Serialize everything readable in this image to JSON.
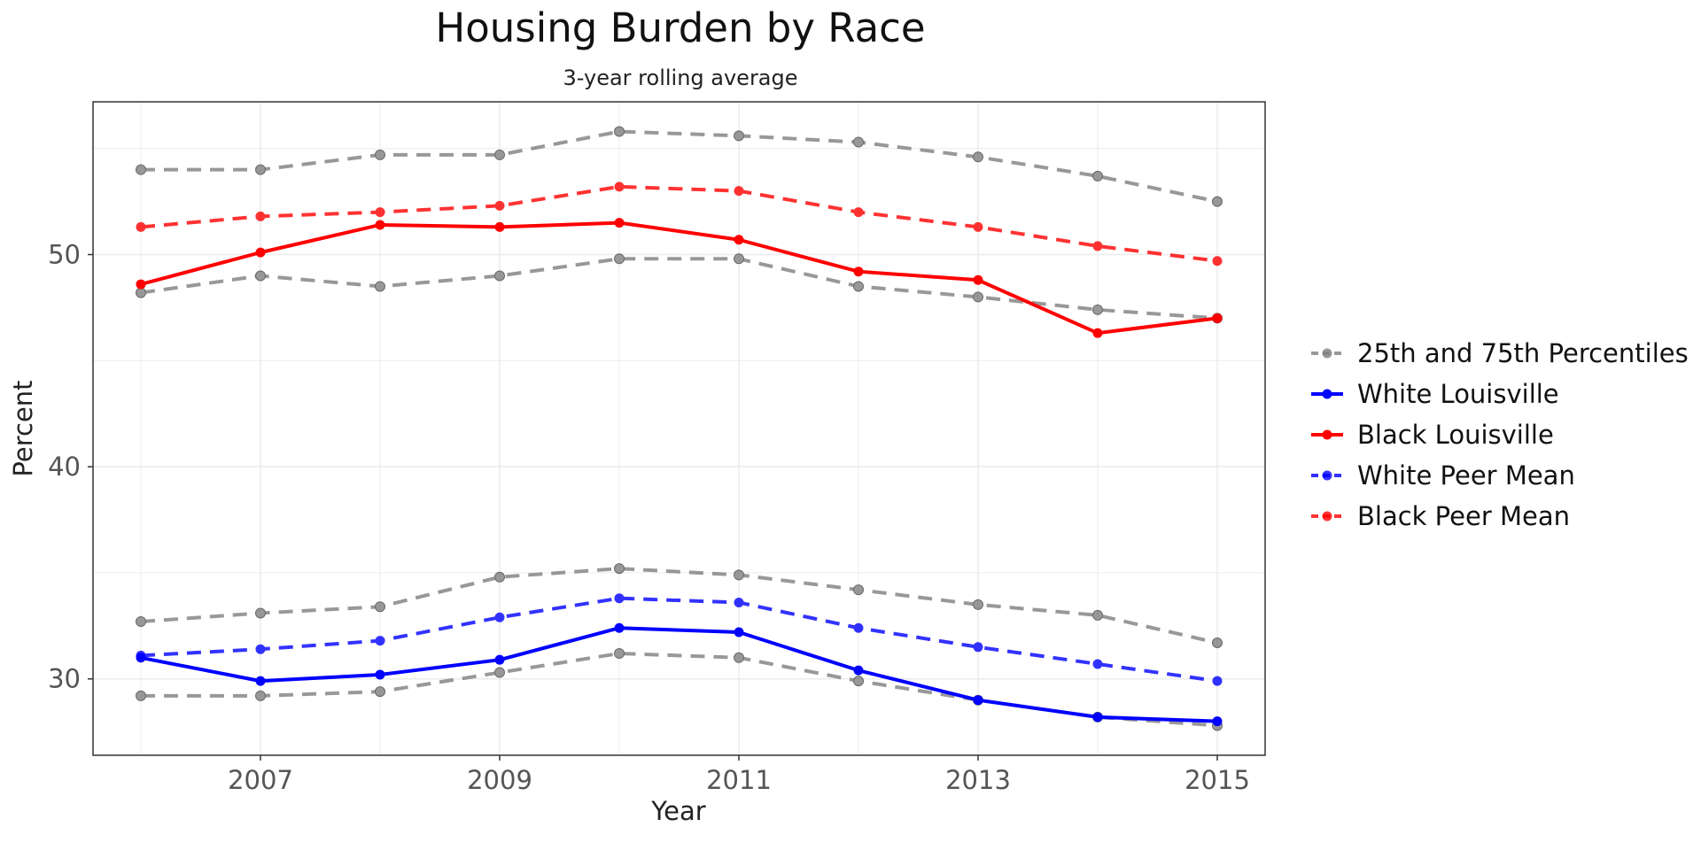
{
  "chart_data": {
    "type": "line",
    "title": "Housing Burden by Race",
    "subtitle": "3-year rolling average",
    "xlabel": "Year",
    "ylabel": "Percent",
    "x": [
      2006,
      2007,
      2008,
      2009,
      2010,
      2011,
      2012,
      2013,
      2014,
      2015
    ],
    "xlim": [
      2005.6,
      2015.4
    ],
    "ylim": [
      26.4,
      57.2
    ],
    "x_ticks": [
      "2007",
      "2009",
      "2011",
      "2013",
      "2015"
    ],
    "y_ticks": [
      "30",
      "40",
      "50"
    ],
    "grid": true,
    "legend_position": "right",
    "legend": [
      {
        "label": "25th and 75th Percentiles",
        "color": "#7f7f7f",
        "dashed": true
      },
      {
        "label": "White Louisville",
        "color": "#0000ff",
        "dashed": false
      },
      {
        "label": "Black Louisville",
        "color": "#ff0000",
        "dashed": false
      },
      {
        "label": "White Peer Mean",
        "color": "#0000ff",
        "dashed": true
      },
      {
        "label": "Black Peer Mean",
        "color": "#ff0000",
        "dashed": true
      }
    ],
    "series": [
      {
        "group": "percentile",
        "color": "#7f7f7f",
        "dashed": true,
        "opacity": 0.8,
        "values": [
          54.0,
          54.0,
          54.7,
          54.7,
          55.8,
          55.6,
          55.3,
          54.6,
          53.7,
          52.5
        ]
      },
      {
        "group": "percentile",
        "color": "#7f7f7f",
        "dashed": true,
        "opacity": 0.8,
        "values": [
          48.2,
          49.0,
          48.5,
          49.0,
          49.8,
          49.8,
          48.5,
          48.0,
          47.4,
          47.0
        ]
      },
      {
        "group": "percentile",
        "color": "#7f7f7f",
        "dashed": true,
        "opacity": 0.8,
        "values": [
          32.7,
          33.1,
          33.4,
          34.8,
          35.2,
          34.9,
          34.2,
          33.5,
          33.0,
          31.7
        ]
      },
      {
        "group": "percentile",
        "color": "#7f7f7f",
        "dashed": true,
        "opacity": 0.8,
        "values": [
          29.2,
          29.2,
          29.4,
          30.3,
          31.2,
          31.0,
          29.9,
          29.0,
          28.2,
          27.8
        ]
      },
      {
        "name": "Black Peer Mean",
        "color": "#ff0000",
        "dashed": true,
        "opacity": 0.8,
        "values": [
          51.3,
          51.8,
          52.0,
          52.3,
          53.2,
          53.0,
          52.0,
          51.3,
          50.4,
          49.7
        ]
      },
      {
        "name": "White Peer Mean",
        "color": "#0000ff",
        "dashed": true,
        "opacity": 0.8,
        "values": [
          31.1,
          31.4,
          31.8,
          32.9,
          33.8,
          33.6,
          32.4,
          31.5,
          30.7,
          29.9
        ]
      },
      {
        "name": "Black Louisville",
        "color": "#ff0000",
        "dashed": false,
        "opacity": 1,
        "values": [
          48.6,
          50.1,
          51.4,
          51.3,
          51.5,
          50.7,
          49.2,
          48.8,
          46.3,
          47.0
        ]
      },
      {
        "name": "White Louisville",
        "color": "#0000ff",
        "dashed": false,
        "opacity": 1,
        "values": [
          31.0,
          29.9,
          30.2,
          30.9,
          32.4,
          32.2,
          30.4,
          29.0,
          28.2,
          28.0
        ]
      }
    ]
  }
}
